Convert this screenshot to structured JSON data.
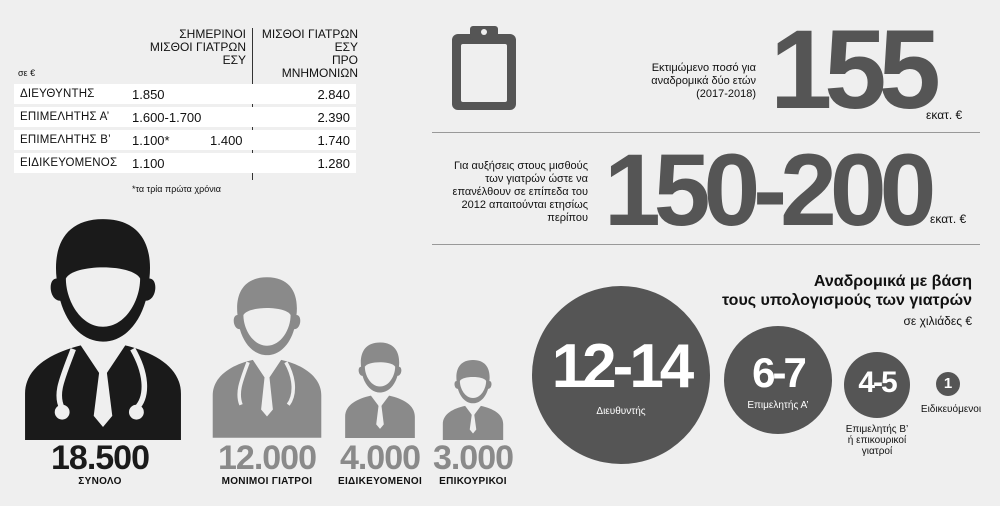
{
  "table": {
    "unit": "σε €",
    "col1_header": [
      "ΣΗΜΕΡΙΝΟΙ",
      "ΜΙΣΘΟΙ ΓΙΑΤΡΩΝ",
      "ΕΣΥ"
    ],
    "col2_header": [
      "ΜΙΣΘΟΙ ΓΙΑΤΡΩΝ",
      "ΕΣΥ",
      "ΠΡΟ ΜΝΗΜΟΝΙΩΝ"
    ],
    "rows": [
      {
        "label": "ΔΙΕΥΘΥΝΤΗΣ",
        "current": "1.850",
        "current2": "",
        "pre": "2.840"
      },
      {
        "label": "ΕΠΙΜΕΛΗΤΗΣ Α’",
        "current": "1.600-1.700",
        "current2": "",
        "pre": "2.390"
      },
      {
        "label": "ΕΠΙΜΕΛΗΤΗΣ Β’",
        "current": "1.100*",
        "current2": "1.400",
        "pre": "1.740"
      },
      {
        "label": "ΕΙΔΙΚΕΥΟΜΕΝΟΣ",
        "current": "1.100",
        "current2": "",
        "pre": "1.280"
      }
    ],
    "footnote": "*τα τρία πρώτα χρόνια"
  },
  "stat1": {
    "text": [
      "Εκτιμώμενο ποσό για",
      "αναδρομικά δύο ετών",
      "(2017-2018)"
    ],
    "value": "155",
    "unit": "εκατ. €"
  },
  "stat2": {
    "text": [
      "Για αυξήσεις στους μισθούς",
      "των γιατρών ώστε να",
      "επανέλθουν σε επίπεδα του",
      "2012 απαιτούνται ετησίως",
      "περίπου"
    ],
    "value": "150-200",
    "unit": "εκατ. €"
  },
  "retro": {
    "title": [
      "Αναδρομικά με βάση",
      "τους υπολογισμούς των γιατρών"
    ],
    "unit": "σε χιλιάδες €",
    "circles": [
      {
        "value": "12-14",
        "label": "Διευθυντής"
      },
      {
        "value": "6-7",
        "label": "Επιμελητής Α’"
      },
      {
        "value": "4-5",
        "label": [
          "Επιμελητής Β’",
          "ή επικουρικοί",
          "γιατροί"
        ]
      },
      {
        "value": "1",
        "label": "Ειδικευόμενοι"
      }
    ]
  },
  "doctors": [
    {
      "count": "18.500",
      "label": "ΣΥΝΟΛΟ",
      "color": "#1a1a1a"
    },
    {
      "count": "12.000",
      "label": "ΜΟΝΙΜΟΙ ΓΙΑΤΡΟΙ",
      "color": "#8a8a8a"
    },
    {
      "count": "4.000",
      "label": "ΕΙΔΙΚΕΥΟΜΕΝΟΙ",
      "color": "#8a8a8a"
    },
    {
      "count": "3.000",
      "label": "ΕΠΙΚΟΥΡΙΚΟΙ",
      "color": "#8a8a8a"
    }
  ],
  "colors": {
    "dark": "#1a1a1a",
    "grey": "#555555",
    "light_grey": "#8a8a8a",
    "background": "#efefef"
  }
}
